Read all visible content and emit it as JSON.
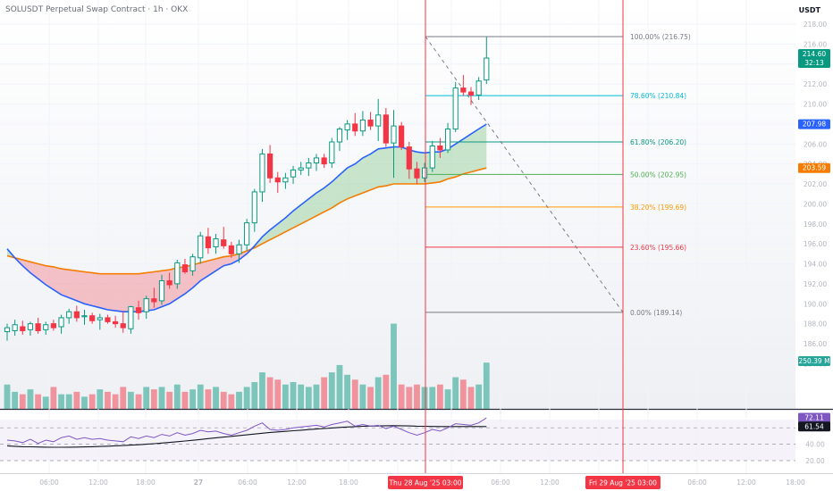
{
  "legend": {
    "title": "SOLUSDT Perpetual Swap Contract · 1h · OKX"
  },
  "price_axis": {
    "unit": "USDT",
    "ticks": [
      "218.00",
      "216.00",
      "214.00",
      "212.00",
      "210.00",
      "208.00",
      "206.00",
      "204.00",
      "202.00",
      "200.00",
      "198.00",
      "196.00",
      "194.00",
      "192.00",
      "190.00",
      "188.00",
      "186.00",
      "184.00"
    ],
    "last_price": "214.60",
    "countdown": "32:13",
    "ema_fast_value": "207.98",
    "ema_slow_value": "203.59",
    "volume_value": "250.39 M"
  },
  "rsi_axis": {
    "ticks": [
      "60.00",
      "40.00",
      "20.00"
    ],
    "rsi_value": "72.11",
    "rsi_ma_value": "61.54"
  },
  "time_axis": {
    "labels": [
      "06:00",
      "12:00",
      "18:00",
      "27",
      "06:00",
      "12:00",
      "18:00",
      "06:00",
      "12:00",
      "18:00",
      "06:00",
      "12:00",
      "18:00"
    ],
    "marker_a": "Thu 28 Aug '25   03:00",
    "marker_b": "Fri 29 Aug '25   03:00"
  },
  "fib_levels": [
    {
      "label": "100.00% (216.75)",
      "price": 216.75,
      "color": "#787b86"
    },
    {
      "label": "78.60% (210.84)",
      "price": 210.84,
      "color": "#00bcd4"
    },
    {
      "label": "61.80% (206.20)",
      "price": 206.2,
      "color": "#089981"
    },
    {
      "label": "50.00% (202.95)",
      "price": 202.95,
      "color": "#4caf50"
    },
    {
      "label": "38.20% (199.69)",
      "price": 199.69,
      "color": "#ff9800"
    },
    {
      "label": "23.60% (195.66)",
      "price": 195.66,
      "color": "#f23645"
    },
    {
      "label": "0.00% (189.14)",
      "price": 189.14,
      "color": "#787b86"
    }
  ],
  "colors": {
    "up": "#089981",
    "down": "#f23645",
    "ema_fast": "#2962ff",
    "ema_slow": "#f57c00",
    "rsi": "#7e57c2",
    "vline": "#f23645"
  },
  "chart_data": {
    "type": "candlestick",
    "price_range": [
      183,
      219
    ],
    "candles": [
      {
        "o": 187.2,
        "h": 188.0,
        "l": 186.3,
        "c": 187.6
      },
      {
        "o": 187.3,
        "h": 188.4,
        "l": 186.8,
        "c": 187.9
      },
      {
        "o": 187.7,
        "h": 188.3,
        "l": 186.9,
        "c": 187.3
      },
      {
        "o": 187.4,
        "h": 188.2,
        "l": 186.8,
        "c": 188.0
      },
      {
        "o": 188.0,
        "h": 188.6,
        "l": 187.0,
        "c": 187.3
      },
      {
        "o": 187.4,
        "h": 188.2,
        "l": 186.9,
        "c": 187.9
      },
      {
        "o": 188.0,
        "h": 188.4,
        "l": 187.3,
        "c": 187.6
      },
      {
        "o": 187.7,
        "h": 188.9,
        "l": 187.0,
        "c": 188.6
      },
      {
        "o": 188.6,
        "h": 189.5,
        "l": 188.0,
        "c": 189.2
      },
      {
        "o": 189.2,
        "h": 189.8,
        "l": 188.2,
        "c": 188.6
      },
      {
        "o": 188.7,
        "h": 189.4,
        "l": 187.9,
        "c": 188.8
      },
      {
        "o": 188.8,
        "h": 189.1,
        "l": 188.0,
        "c": 188.3
      },
      {
        "o": 188.4,
        "h": 189.0,
        "l": 187.4,
        "c": 188.6
      },
      {
        "o": 188.6,
        "h": 188.9,
        "l": 188.0,
        "c": 188.2
      },
      {
        "o": 188.2,
        "h": 188.8,
        "l": 187.6,
        "c": 188.0
      },
      {
        "o": 188.0,
        "h": 189.3,
        "l": 187.1,
        "c": 187.6
      },
      {
        "o": 187.5,
        "h": 189.8,
        "l": 187.0,
        "c": 189.7
      },
      {
        "o": 189.6,
        "h": 190.3,
        "l": 188.4,
        "c": 189.1
      },
      {
        "o": 189.2,
        "h": 190.8,
        "l": 188.5,
        "c": 190.5
      },
      {
        "o": 190.5,
        "h": 191.6,
        "l": 189.6,
        "c": 190.2
      },
      {
        "o": 190.3,
        "h": 192.9,
        "l": 189.9,
        "c": 192.3
      },
      {
        "o": 192.3,
        "h": 193.1,
        "l": 191.5,
        "c": 191.9
      },
      {
        "o": 192.0,
        "h": 194.4,
        "l": 191.5,
        "c": 194.1
      },
      {
        "o": 193.9,
        "h": 194.5,
        "l": 193.0,
        "c": 193.2
      },
      {
        "o": 193.3,
        "h": 195.0,
        "l": 192.8,
        "c": 194.7
      },
      {
        "o": 194.6,
        "h": 197.2,
        "l": 194.0,
        "c": 196.8
      },
      {
        "o": 196.7,
        "h": 197.6,
        "l": 195.0,
        "c": 195.6
      },
      {
        "o": 195.7,
        "h": 197.0,
        "l": 195.0,
        "c": 196.5
      },
      {
        "o": 196.4,
        "h": 197.7,
        "l": 195.5,
        "c": 195.8
      },
      {
        "o": 195.8,
        "h": 196.2,
        "l": 194.6,
        "c": 195.0
      },
      {
        "o": 195.0,
        "h": 196.4,
        "l": 194.1,
        "c": 195.9
      },
      {
        "o": 195.9,
        "h": 198.5,
        "l": 195.3,
        "c": 198.1
      },
      {
        "o": 198.1,
        "h": 201.5,
        "l": 197.2,
        "c": 201.2
      },
      {
        "o": 201.2,
        "h": 205.5,
        "l": 200.2,
        "c": 205.0
      },
      {
        "o": 205.0,
        "h": 205.9,
        "l": 202.1,
        "c": 202.6
      },
      {
        "o": 202.6,
        "h": 203.2,
        "l": 201.1,
        "c": 202.2
      },
      {
        "o": 202.2,
        "h": 203.1,
        "l": 201.5,
        "c": 202.6
      },
      {
        "o": 202.7,
        "h": 203.8,
        "l": 202.0,
        "c": 203.4
      },
      {
        "o": 203.4,
        "h": 204.2,
        "l": 202.9,
        "c": 203.6
      },
      {
        "o": 203.6,
        "h": 204.6,
        "l": 202.8,
        "c": 204.1
      },
      {
        "o": 204.1,
        "h": 205.0,
        "l": 203.3,
        "c": 204.6
      },
      {
        "o": 204.6,
        "h": 205.0,
        "l": 203.6,
        "c": 204.0
      },
      {
        "o": 204.1,
        "h": 206.6,
        "l": 203.6,
        "c": 206.2
      },
      {
        "o": 206.2,
        "h": 207.7,
        "l": 205.3,
        "c": 207.5
      },
      {
        "o": 207.4,
        "h": 208.4,
        "l": 206.4,
        "c": 208.0
      },
      {
        "o": 208.0,
        "h": 209.1,
        "l": 206.8,
        "c": 207.3
      },
      {
        "o": 207.3,
        "h": 209.3,
        "l": 206.8,
        "c": 208.4
      },
      {
        "o": 208.4,
        "h": 209.2,
        "l": 207.4,
        "c": 207.8
      },
      {
        "o": 207.8,
        "h": 210.5,
        "l": 206.3,
        "c": 208.9
      },
      {
        "o": 208.9,
        "h": 209.6,
        "l": 205.7,
        "c": 206.1
      },
      {
        "o": 206.1,
        "h": 209.4,
        "l": 202.6,
        "c": 207.8
      },
      {
        "o": 207.8,
        "h": 208.2,
        "l": 205.4,
        "c": 205.7
      },
      {
        "o": 205.7,
        "h": 206.2,
        "l": 202.5,
        "c": 203.5
      },
      {
        "o": 203.5,
        "h": 204.2,
        "l": 202.0,
        "c": 202.6
      },
      {
        "o": 202.6,
        "h": 204.1,
        "l": 202.2,
        "c": 203.6
      },
      {
        "o": 203.6,
        "h": 206.3,
        "l": 203.2,
        "c": 205.8
      },
      {
        "o": 205.8,
        "h": 206.6,
        "l": 204.6,
        "c": 205.4
      },
      {
        "o": 205.4,
        "h": 208.1,
        "l": 205.1,
        "c": 207.5
      },
      {
        "o": 207.5,
        "h": 212.2,
        "l": 207.2,
        "c": 211.6
      },
      {
        "o": 211.6,
        "h": 212.9,
        "l": 210.8,
        "c": 211.2
      },
      {
        "o": 211.2,
        "h": 211.7,
        "l": 209.9,
        "c": 210.9
      },
      {
        "o": 210.9,
        "h": 212.7,
        "l": 210.4,
        "c": 212.3
      },
      {
        "o": 212.4,
        "h": 216.7,
        "l": 212.0,
        "c": 214.6
      }
    ],
    "volume": [
      1.0,
      0.7,
      0.6,
      0.8,
      0.6,
      0.5,
      0.9,
      0.6,
      0.6,
      0.7,
      0.5,
      0.6,
      0.8,
      0.7,
      0.6,
      0.9,
      0.7,
      0.6,
      0.9,
      0.8,
      0.9,
      0.7,
      1.0,
      0.7,
      0.8,
      1.0,
      0.8,
      0.9,
      0.7,
      0.6,
      0.7,
      0.9,
      1.1,
      1.5,
      1.3,
      1.2,
      1.0,
      1.1,
      1.0,
      0.9,
      1.0,
      1.3,
      1.5,
      1.8,
      1.4,
      1.2,
      1.0,
      0.9,
      1.3,
      1.4,
      3.5,
      1.0,
      0.9,
      1.0,
      0.9,
      0.9,
      1.0,
      0.8,
      1.3,
      1.2,
      0.9,
      1.0,
      1.9
    ],
    "volume_max": 4.4,
    "ema_fast": [
      195.5,
      194.6,
      193.8,
      193.1,
      192.5,
      191.9,
      191.4,
      190.9,
      190.6,
      190.3,
      190.0,
      189.8,
      189.6,
      189.4,
      189.3,
      189.2,
      189.2,
      189.2,
      189.3,
      189.4,
      189.7,
      190.0,
      190.5,
      191.0,
      191.6,
      192.3,
      192.8,
      193.3,
      193.8,
      194.0,
      194.4,
      195.0,
      195.8,
      196.7,
      197.4,
      198.0,
      198.6,
      199.3,
      199.9,
      200.5,
      201.1,
      201.6,
      202.2,
      202.9,
      203.6,
      204.0,
      204.6,
      205.0,
      205.5,
      205.6,
      205.7,
      205.7,
      205.4,
      205.2,
      205.1,
      205.2,
      205.2,
      205.5,
      206.0,
      206.5,
      207.0,
      207.5,
      207.98
    ],
    "ema_slow": [
      194.8,
      194.6,
      194.4,
      194.2,
      194.0,
      193.8,
      193.7,
      193.5,
      193.4,
      193.3,
      193.2,
      193.1,
      193.0,
      193.0,
      193.0,
      193.0,
      193.0,
      193.0,
      193.1,
      193.2,
      193.3,
      193.4,
      193.6,
      193.7,
      193.9,
      194.1,
      194.3,
      194.5,
      194.7,
      194.8,
      195.0,
      195.3,
      195.6,
      196.0,
      196.4,
      196.8,
      197.2,
      197.6,
      198.0,
      198.4,
      198.8,
      199.2,
      199.6,
      200.1,
      200.5,
      200.8,
      201.1,
      201.4,
      201.7,
      201.8,
      202.0,
      202.0,
      202.0,
      202.0,
      202.0,
      202.1,
      202.2,
      202.5,
      202.7,
      203.0,
      203.2,
      203.4,
      203.59
    ],
    "rsi": [
      45,
      44,
      42,
      46,
      41,
      45,
      43,
      48,
      50,
      46,
      48,
      46,
      47,
      45,
      44,
      43,
      49,
      47,
      50,
      48,
      52,
      50,
      54,
      51,
      53,
      57,
      55,
      56,
      53,
      51,
      54,
      57,
      62,
      66,
      58,
      57,
      58,
      60,
      61,
      62,
      63,
      61,
      64,
      66,
      68,
      62,
      64,
      62,
      63,
      59,
      62,
      58,
      54,
      51,
      54,
      58,
      56,
      60,
      65,
      64,
      63,
      66,
      72.11
    ],
    "rsi_ma": [
      38,
      37.5,
      37,
      36.8,
      36.6,
      36.4,
      36.3,
      36.3,
      36.4,
      36.5,
      36.7,
      37,
      37.3,
      37.6,
      38,
      38.4,
      38.9,
      39.4,
      40,
      40.7,
      41.4,
      42.2,
      43,
      43.9,
      44.8,
      45.8,
      46.8,
      47.8,
      48.7,
      49.6,
      50.5,
      51.4,
      52.4,
      53.4,
      54.3,
      55,
      55.7,
      56.4,
      57.1,
      57.8,
      58.5,
      59.1,
      59.8,
      60.4,
      61,
      61.4,
      61.8,
      62.1,
      62.3,
      62.5,
      62.6,
      62.5,
      62.3,
      62,
      61.8,
      61.6,
      61.5,
      61.5,
      61.5,
      61.5,
      61.5,
      61.5,
      61.54
    ],
    "rsi_range": [
      15,
      78
    ]
  }
}
